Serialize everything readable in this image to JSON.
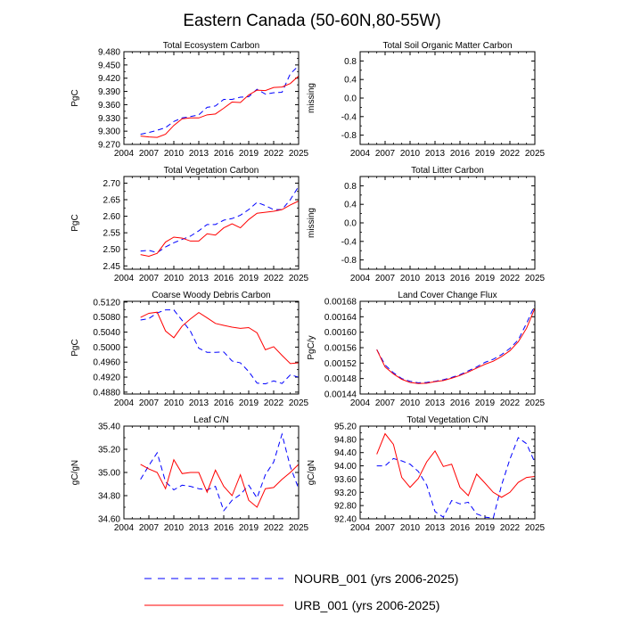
{
  "title": "Eastern Canada (50-60N,80-55W)",
  "legend": [
    {
      "label": "NOURB_001 (yrs 2006-2025)",
      "color": "#0000ff",
      "dash": true
    },
    {
      "label": "URB_001 (yrs 2006-2025)",
      "color": "#ff0000",
      "dash": false
    }
  ],
  "chart_data": [
    {
      "type": "line",
      "id": "ecosystem",
      "title": "Total Ecosystem Carbon",
      "ylabel": "PgC",
      "xlim": [
        2004,
        2025
      ],
      "xticks": [
        2004,
        2007,
        2010,
        2013,
        2016,
        2019,
        2022,
        2025
      ],
      "ylim": [
        9.27,
        9.48
      ],
      "yticks": [
        9.27,
        9.3,
        9.33,
        9.36,
        9.39,
        9.42,
        9.45,
        9.48
      ],
      "ytick_labels": [
        "9.270",
        "9.300",
        "9.330",
        "9.360",
        "9.390",
        "9.420",
        "9.450",
        "9.480"
      ],
      "x": [
        2006,
        2007,
        2008,
        2009,
        2010,
        2011,
        2012,
        2013,
        2014,
        2015,
        2016,
        2017,
        2018,
        2019,
        2020,
        2021,
        2022,
        2023,
        2024,
        2025
      ],
      "series": [
        {
          "name": "NOURB_001",
          "values": [
            9.293,
            9.297,
            9.302,
            9.308,
            9.322,
            9.33,
            9.333,
            9.337,
            9.354,
            9.357,
            9.372,
            9.372,
            9.377,
            9.378,
            9.395,
            9.384,
            9.387,
            9.388,
            9.43,
            9.448
          ]
        },
        {
          "name": "URB_001",
          "values": [
            9.289,
            9.287,
            9.286,
            9.293,
            9.313,
            9.328,
            9.33,
            9.33,
            9.337,
            9.339,
            9.352,
            9.366,
            9.365,
            9.382,
            9.393,
            9.392,
            9.399,
            9.4,
            9.408,
            9.425
          ]
        }
      ]
    },
    {
      "type": "line",
      "id": "soil",
      "title": "Total Soil Organic Matter Carbon",
      "ylabel": "missing",
      "xlim": [
        2004,
        2025
      ],
      "xticks": [
        2004,
        2007,
        2010,
        2013,
        2016,
        2019,
        2022,
        2025
      ],
      "ylim": [
        -1.0,
        1.0
      ],
      "yticks": [
        -0.8,
        -0.4,
        0,
        0.4,
        0.8
      ],
      "ytick_labels": [
        "-0.8",
        "-0.4",
        "0.0",
        "0.4",
        "0.8"
      ],
      "x": [],
      "series": []
    },
    {
      "type": "line",
      "id": "vegetation",
      "title": "Total Vegetation Carbon",
      "ylabel": "PgC",
      "xlim": [
        2004,
        2025
      ],
      "xticks": [
        2004,
        2007,
        2010,
        2013,
        2016,
        2019,
        2022,
        2025
      ],
      "ylim": [
        2.44,
        2.72
      ],
      "yticks": [
        2.45,
        2.5,
        2.55,
        2.6,
        2.65,
        2.7
      ],
      "ytick_labels": [
        "2.45",
        "2.50",
        "2.55",
        "2.60",
        "2.65",
        "2.70"
      ],
      "x": [
        2006,
        2007,
        2008,
        2009,
        2010,
        2011,
        2012,
        2013,
        2014,
        2015,
        2016,
        2017,
        2018,
        2019,
        2020,
        2021,
        2022,
        2023,
        2024,
        2025
      ],
      "series": [
        {
          "name": "NOURB_001",
          "values": [
            2.495,
            2.497,
            2.49,
            2.507,
            2.52,
            2.53,
            2.54,
            2.556,
            2.575,
            2.575,
            2.588,
            2.593,
            2.603,
            2.62,
            2.642,
            2.632,
            2.62,
            2.62,
            2.65,
            2.69
          ]
        },
        {
          "name": "URB_001",
          "values": [
            2.484,
            2.479,
            2.488,
            2.522,
            2.537,
            2.534,
            2.525,
            2.525,
            2.547,
            2.543,
            2.565,
            2.577,
            2.565,
            2.59,
            2.609,
            2.612,
            2.615,
            2.62,
            2.634,
            2.646
          ]
        }
      ]
    },
    {
      "type": "line",
      "id": "litter",
      "title": "Total Litter Carbon",
      "ylabel": "missing",
      "xlim": [
        2004,
        2025
      ],
      "xticks": [
        2004,
        2007,
        2010,
        2013,
        2016,
        2019,
        2022,
        2025
      ],
      "ylim": [
        -1.0,
        1.0
      ],
      "yticks": [
        -0.8,
        -0.4,
        0,
        0.4,
        0.8
      ],
      "ytick_labels": [
        "-0.8",
        "-0.4",
        "0.0",
        "0.4",
        "0.8"
      ],
      "x": [],
      "series": []
    },
    {
      "type": "line",
      "id": "cwd",
      "title": "Coarse Woody Debris Carbon",
      "ylabel": "PgC",
      "xlim": [
        2004,
        2025
      ],
      "xticks": [
        2004,
        2007,
        2010,
        2013,
        2016,
        2019,
        2022,
        2025
      ],
      "ylim": [
        0.4875,
        0.5122
      ],
      "yticks": [
        0.488,
        0.492,
        0.496,
        0.5,
        0.504,
        0.508,
        0.512
      ],
      "ytick_labels": [
        "0.4880",
        "0.4920",
        "0.4960",
        "0.5000",
        "0.5040",
        "0.5080",
        "0.5120"
      ],
      "x": [
        2006,
        2007,
        2008,
        2009,
        2010,
        2011,
        2012,
        2013,
        2014,
        2015,
        2016,
        2017,
        2018,
        2019,
        2020,
        2021,
        2022,
        2023,
        2024,
        2025
      ],
      "series": [
        {
          "name": "NOURB_001",
          "values": [
            0.5072,
            0.5076,
            0.5091,
            0.5099,
            0.5099,
            0.5071,
            0.5042,
            0.4997,
            0.4986,
            0.4986,
            0.4987,
            0.4963,
            0.4958,
            0.4935,
            0.4904,
            0.4902,
            0.491,
            0.4903,
            0.4926,
            0.492
          ]
        },
        {
          "name": "URB_001",
          "values": [
            0.5079,
            0.509,
            0.5093,
            0.5043,
            0.5025,
            0.5056,
            0.5075,
            0.5092,
            0.5078,
            0.5063,
            0.5058,
            0.5053,
            0.505,
            0.5052,
            0.5038,
            0.4993,
            0.5001,
            0.4978,
            0.4956,
            0.4958
          ]
        }
      ]
    },
    {
      "type": "line",
      "id": "landcover",
      "title": "Land Cover Change Flux",
      "ylabel": "PgC/y",
      "xlim": [
        2004,
        2025
      ],
      "xticks": [
        2004,
        2007,
        2010,
        2013,
        2016,
        2019,
        2022,
        2025
      ],
      "ylim": [
        0.00144,
        0.00168
      ],
      "yticks": [
        0.00144,
        0.00148,
        0.00152,
        0.00156,
        0.0016,
        0.00164,
        0.00168
      ],
      "ytick_labels": [
        "0.00144",
        "0.00148",
        "0.00152",
        "0.00156",
        "0.00160",
        "0.00164",
        "0.00168"
      ],
      "x": [
        2006,
        2007,
        2008,
        2009,
        2010,
        2011,
        2012,
        2013,
        2014,
        2015,
        2016,
        2017,
        2018,
        2019,
        2020,
        2021,
        2022,
        2023,
        2024,
        2025
      ],
      "series": [
        {
          "name": "NOURB_001",
          "values": [
            0.001555,
            0.001515,
            0.001495,
            0.00148,
            0.001473,
            0.001469,
            0.00147,
            0.001473,
            0.001477,
            0.001483,
            0.00149,
            0.0015,
            0.00151,
            0.001522,
            0.00153,
            0.001542,
            0.001558,
            0.00158,
            0.001623,
            0.00167
          ]
        },
        {
          "name": "URB_001",
          "values": [
            0.001555,
            0.00151,
            0.001492,
            0.001478,
            0.00147,
            0.001467,
            0.001468,
            0.001472,
            0.001475,
            0.001481,
            0.001488,
            0.001497,
            0.001507,
            0.001517,
            0.001525,
            0.001537,
            0.001552,
            0.001575,
            0.00161,
            0.001662
          ]
        }
      ]
    },
    {
      "type": "line",
      "id": "leafcn",
      "title": "Leaf C/N",
      "ylabel": "gC/gN",
      "xlim": [
        2004,
        2025
      ],
      "xticks": [
        2004,
        2007,
        2010,
        2013,
        2016,
        2019,
        2022,
        2025
      ],
      "ylim": [
        34.6,
        35.4
      ],
      "yticks": [
        34.6,
        34.8,
        35.0,
        35.2,
        35.4
      ],
      "ytick_labels": [
        "34.60",
        "34.80",
        "35.00",
        "35.20",
        "35.40"
      ],
      "x": [
        2006,
        2007,
        2008,
        2009,
        2010,
        2011,
        2012,
        2013,
        2014,
        2015,
        2016,
        2017,
        2018,
        2019,
        2020,
        2021,
        2022,
        2023,
        2024,
        2025
      ],
      "series": [
        {
          "name": "NOURB_001",
          "values": [
            34.94,
            35.06,
            35.17,
            34.92,
            34.85,
            34.89,
            34.88,
            34.86,
            34.85,
            34.88,
            34.67,
            34.76,
            34.81,
            34.89,
            34.78,
            34.98,
            35.09,
            35.33,
            35.05,
            34.86
          ]
        },
        {
          "name": "URB_001",
          "values": [
            35.07,
            35.03,
            35.0,
            34.86,
            35.11,
            34.99,
            35.0,
            35.0,
            34.83,
            35.02,
            34.88,
            34.8,
            34.98,
            34.76,
            34.7,
            34.86,
            34.87,
            34.94,
            35.0,
            35.07
          ]
        }
      ]
    },
    {
      "type": "line",
      "id": "vegcn",
      "title": "Total Vegetation C/N",
      "ylabel": "gC/gN",
      "xlim": [
        2004,
        2025
      ],
      "xticks": [
        2004,
        2007,
        2010,
        2013,
        2016,
        2019,
        2022,
        2025
      ],
      "ylim": [
        92.4,
        95.2
      ],
      "yticks": [
        92.4,
        92.8,
        93.2,
        93.6,
        94.0,
        94.4,
        94.8,
        95.2
      ],
      "ytick_labels": [
        "92.40",
        "92.80",
        "93.20",
        "93.60",
        "94.00",
        "94.40",
        "94.80",
        "95.20"
      ],
      "x": [
        2006,
        2007,
        2008,
        2009,
        2010,
        2011,
        2012,
        2013,
        2014,
        2015,
        2016,
        2017,
        2018,
        2019,
        2020,
        2021,
        2022,
        2023,
        2024,
        2025
      ],
      "series": [
        {
          "name": "NOURB_001",
          "values": [
            94.0,
            94.0,
            94.22,
            94.15,
            94.05,
            93.83,
            93.42,
            92.62,
            92.45,
            92.95,
            92.85,
            92.9,
            92.55,
            92.45,
            92.42,
            93.42,
            94.2,
            94.85,
            94.67,
            94.1
          ]
        },
        {
          "name": "URB_001",
          "values": [
            94.35,
            94.97,
            94.65,
            93.65,
            93.35,
            93.62,
            94.12,
            94.45,
            93.98,
            94.05,
            93.35,
            93.1,
            93.75,
            93.48,
            93.2,
            93.05,
            93.2,
            93.5,
            93.65,
            93.68
          ]
        }
      ]
    }
  ]
}
